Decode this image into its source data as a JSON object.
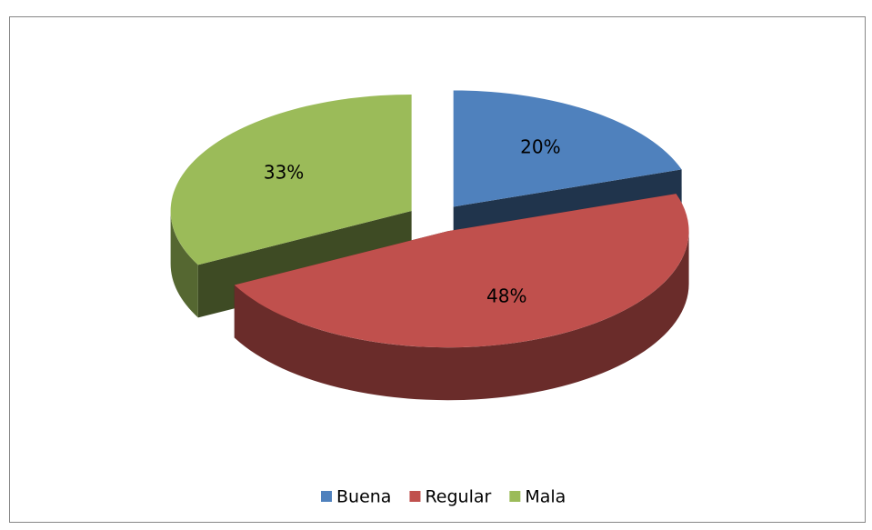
{
  "chart_data": {
    "type": "pie",
    "categories": [
      "Buena",
      "Regular",
      "Mala"
    ],
    "values": [
      20,
      48,
      33
    ],
    "value_labels": [
      "20%",
      "48%",
      "33%"
    ],
    "colors": [
      "#4f81bd",
      "#c0504d",
      "#9bbb59"
    ],
    "legend": "bottom"
  }
}
